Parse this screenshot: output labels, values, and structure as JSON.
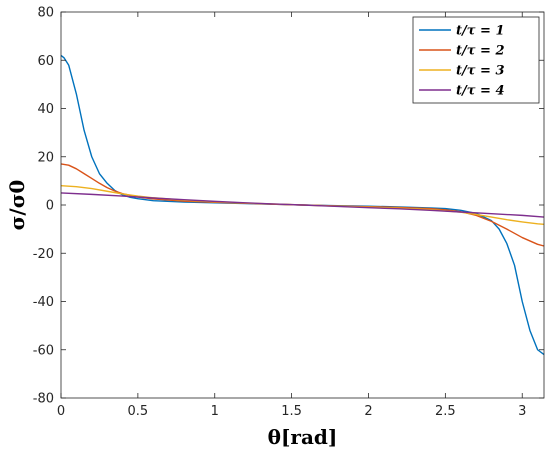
{
  "chart_data": {
    "type": "line",
    "title": "",
    "xlabel": "θ[rad]",
    "ylabel": "σ/σ0",
    "xlim": [
      0,
      3.14159
    ],
    "ylim": [
      -80,
      80
    ],
    "xticks": [
      0,
      0.5,
      1,
      1.5,
      2,
      2.5,
      3
    ],
    "yticks": [
      80,
      60,
      40,
      20,
      0,
      -20,
      -40,
      -60,
      -80
    ],
    "xtick_labels": [
      "0",
      "0.5",
      "1",
      "1.5",
      "2",
      "2.5",
      "3"
    ],
    "ytick_labels": [
      "80",
      "60",
      "40",
      "20",
      "0",
      "-20",
      "-40",
      "-60",
      "-80"
    ],
    "legend_position": "top-right",
    "grid": false,
    "series": [
      {
        "name": "t/τ = 1",
        "color": "#0072BD",
        "points": [
          [
            0,
            62
          ],
          [
            0.02,
            61
          ],
          [
            0.05,
            58
          ],
          [
            0.1,
            46
          ],
          [
            0.15,
            31
          ],
          [
            0.2,
            20
          ],
          [
            0.25,
            13
          ],
          [
            0.3,
            9
          ],
          [
            0.35,
            6
          ],
          [
            0.4,
            4.2
          ],
          [
            0.45,
            3.2
          ],
          [
            0.5,
            2.6
          ],
          [
            0.6,
            1.8
          ],
          [
            0.8,
            1.2
          ],
          [
            1.0,
            0.9
          ],
          [
            1.2,
            0.6
          ],
          [
            1.4,
            0.3
          ],
          [
            1.57,
            0
          ],
          [
            1.8,
            -0.3
          ],
          [
            2.0,
            -0.5
          ],
          [
            2.2,
            -0.8
          ],
          [
            2.4,
            -1.2
          ],
          [
            2.5,
            -1.5
          ],
          [
            2.6,
            -2.2
          ],
          [
            2.7,
            -3.5
          ],
          [
            2.8,
            -6.5
          ],
          [
            2.85,
            -10
          ],
          [
            2.9,
            -16
          ],
          [
            2.95,
            -25
          ],
          [
            3.0,
            -40
          ],
          [
            3.05,
            -52
          ],
          [
            3.1,
            -60
          ],
          [
            3.14159,
            -62
          ]
        ]
      },
      {
        "name": "t/τ = 2",
        "color": "#D95319",
        "points": [
          [
            0,
            17
          ],
          [
            0.05,
            16.5
          ],
          [
            0.1,
            15
          ],
          [
            0.15,
            13
          ],
          [
            0.2,
            11
          ],
          [
            0.25,
            9
          ],
          [
            0.3,
            7.2
          ],
          [
            0.35,
            5.8
          ],
          [
            0.4,
            4.7
          ],
          [
            0.5,
            3.3
          ],
          [
            0.6,
            2.5
          ],
          [
            0.8,
            1.6
          ],
          [
            1.0,
            1.1
          ],
          [
            1.2,
            0.7
          ],
          [
            1.4,
            0.3
          ],
          [
            1.57,
            0
          ],
          [
            1.8,
            -0.4
          ],
          [
            2.0,
            -0.7
          ],
          [
            2.2,
            -1.0
          ],
          [
            2.4,
            -1.5
          ],
          [
            2.5,
            -2.0
          ],
          [
            2.6,
            -2.8
          ],
          [
            2.7,
            -4.3
          ],
          [
            2.8,
            -6.8
          ],
          [
            2.9,
            -10
          ],
          [
            3.0,
            -13.5
          ],
          [
            3.1,
            -16.3
          ],
          [
            3.14159,
            -17
          ]
        ]
      },
      {
        "name": "t/τ = 3",
        "color": "#EDB120",
        "points": [
          [
            0,
            8
          ],
          [
            0.1,
            7.6
          ],
          [
            0.2,
            6.8
          ],
          [
            0.3,
            5.7
          ],
          [
            0.4,
            4.6
          ],
          [
            0.5,
            3.7
          ],
          [
            0.6,
            3.0
          ],
          [
            0.8,
            2.0
          ],
          [
            1.0,
            1.3
          ],
          [
            1.2,
            0.8
          ],
          [
            1.4,
            0.4
          ],
          [
            1.57,
            0
          ],
          [
            1.8,
            -0.5
          ],
          [
            2.0,
            -0.9
          ],
          [
            2.2,
            -1.3
          ],
          [
            2.4,
            -1.9
          ],
          [
            2.6,
            -3.0
          ],
          [
            2.7,
            -3.9
          ],
          [
            2.8,
            -5.0
          ],
          [
            2.9,
            -6.1
          ],
          [
            3.0,
            -7.0
          ],
          [
            3.1,
            -7.8
          ],
          [
            3.14159,
            -8
          ]
        ]
      },
      {
        "name": "t/τ = 4",
        "color": "#7E2F8E",
        "points": [
          [
            0,
            5
          ],
          [
            0.2,
            4.4
          ],
          [
            0.4,
            3.7
          ],
          [
            0.6,
            2.9
          ],
          [
            0.8,
            2.2
          ],
          [
            1.0,
            1.5
          ],
          [
            1.2,
            0.9
          ],
          [
            1.4,
            0.4
          ],
          [
            1.57,
            0
          ],
          [
            1.8,
            -0.6
          ],
          [
            2.0,
            -1.1
          ],
          [
            2.2,
            -1.6
          ],
          [
            2.4,
            -2.2
          ],
          [
            2.6,
            -2.9
          ],
          [
            2.8,
            -3.6
          ],
          [
            3.0,
            -4.3
          ],
          [
            3.14159,
            -5
          ]
        ]
      }
    ]
  }
}
